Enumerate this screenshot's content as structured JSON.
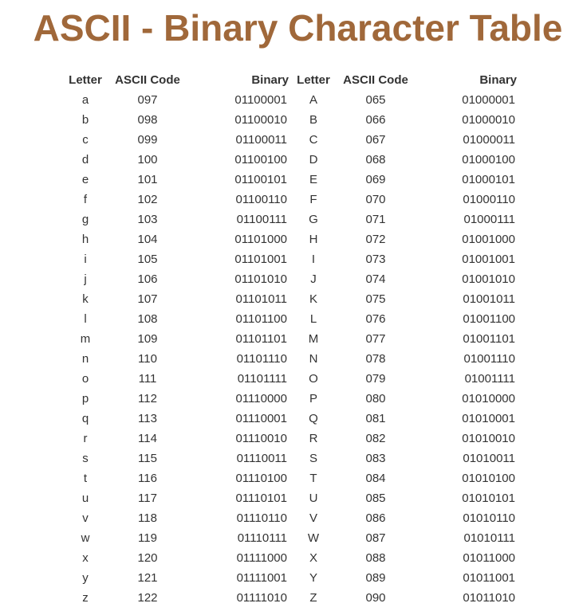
{
  "title": "ASCII - Binary Character Table",
  "headers": [
    "Letter",
    "ASCII Code",
    "Binary",
    "Letter",
    "ASCII Code",
    "Binary"
  ],
  "rows": [
    [
      "a",
      "097",
      "01100001",
      "A",
      "065",
      "01000001"
    ],
    [
      "b",
      "098",
      "01100010",
      "B",
      "066",
      "01000010"
    ],
    [
      "c",
      "099",
      "01100011",
      "C",
      "067",
      "01000011"
    ],
    [
      "d",
      "100",
      "01100100",
      "D",
      "068",
      "01000100"
    ],
    [
      "e",
      "101",
      "01100101",
      "E",
      "069",
      "01000101"
    ],
    [
      "f",
      "102",
      "01100110",
      "F",
      "070",
      "01000110"
    ],
    [
      "g",
      "103",
      "01100111",
      "G",
      "071",
      "01000111"
    ],
    [
      "h",
      "104",
      "01101000",
      "H",
      "072",
      "01001000"
    ],
    [
      "i",
      "105",
      "01101001",
      "I",
      "073",
      "01001001"
    ],
    [
      "j",
      "106",
      "01101010",
      "J",
      "074",
      "01001010"
    ],
    [
      "k",
      "107",
      "01101011",
      "K",
      "075",
      "01001011"
    ],
    [
      "l",
      "108",
      "01101100",
      "L",
      "076",
      "01001100"
    ],
    [
      "m",
      "109",
      "01101101",
      "M",
      "077",
      "01001101"
    ],
    [
      "n",
      "110",
      "01101110",
      "N",
      "078",
      "01001110"
    ],
    [
      "o",
      "111",
      "01101111",
      "O",
      "079",
      "01001111"
    ],
    [
      "p",
      "112",
      "01110000",
      "P",
      "080",
      "01010000"
    ],
    [
      "q",
      "113",
      "01110001",
      "Q",
      "081",
      "01010001"
    ],
    [
      "r",
      "114",
      "01110010",
      "R",
      "082",
      "01010010"
    ],
    [
      "s",
      "115",
      "01110011",
      "S",
      "083",
      "01010011"
    ],
    [
      "t",
      "116",
      "01110100",
      "T",
      "084",
      "01010100"
    ],
    [
      "u",
      "117",
      "01110101",
      "U",
      "085",
      "01010101"
    ],
    [
      "v",
      "118",
      "01110110",
      "V",
      "086",
      "01010110"
    ],
    [
      "w",
      "119",
      "01110111",
      "W",
      "087",
      "01010111"
    ],
    [
      "x",
      "120",
      "01111000",
      "X",
      "088",
      "01011000"
    ],
    [
      "y",
      "121",
      "01111001",
      "Y",
      "089",
      "01011001"
    ],
    [
      "z",
      "122",
      "01111010",
      "Z",
      "090",
      "01011010"
    ]
  ],
  "colors": {
    "title": "#a0683a",
    "text": "#333333",
    "background": "#ffffff"
  }
}
